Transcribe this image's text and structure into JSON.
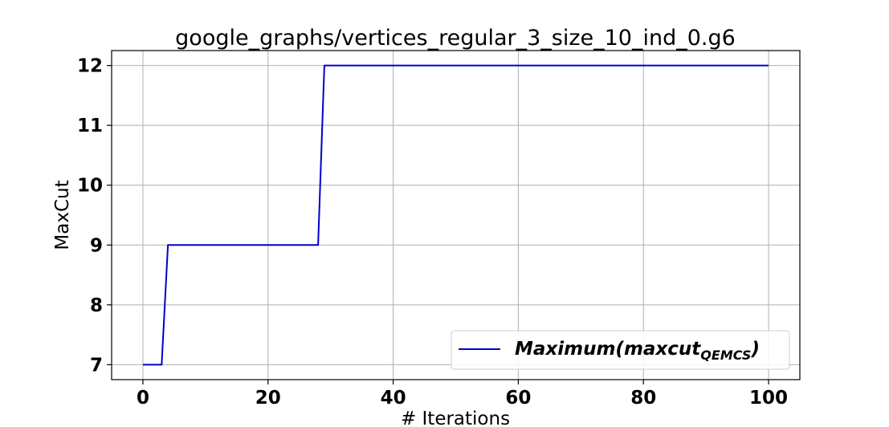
{
  "chart_data": {
    "type": "line",
    "title": "google_graphs/vertices_regular_3_size_10_ind_0.g6",
    "xlabel": "# Iterations",
    "ylabel": "MaxCut",
    "xlim": [
      -5,
      105
    ],
    "ylim": [
      6.75,
      12.25
    ],
    "xticks": [
      0,
      20,
      40,
      60,
      80,
      100
    ],
    "yticks": [
      7,
      8,
      9,
      10,
      11,
      12
    ],
    "grid": true,
    "legend_position": "lower-right",
    "legend": {
      "main": "Maximum(maxcut",
      "subscript": "QEMCS",
      "close": ")"
    },
    "series": [
      {
        "name": "Maximum(maxcut_QEMCS)",
        "color": "#0000cc",
        "x": [
          0,
          3,
          4,
          28,
          29,
          100
        ],
        "y": [
          7,
          7,
          9,
          9,
          12,
          12
        ]
      }
    ]
  }
}
